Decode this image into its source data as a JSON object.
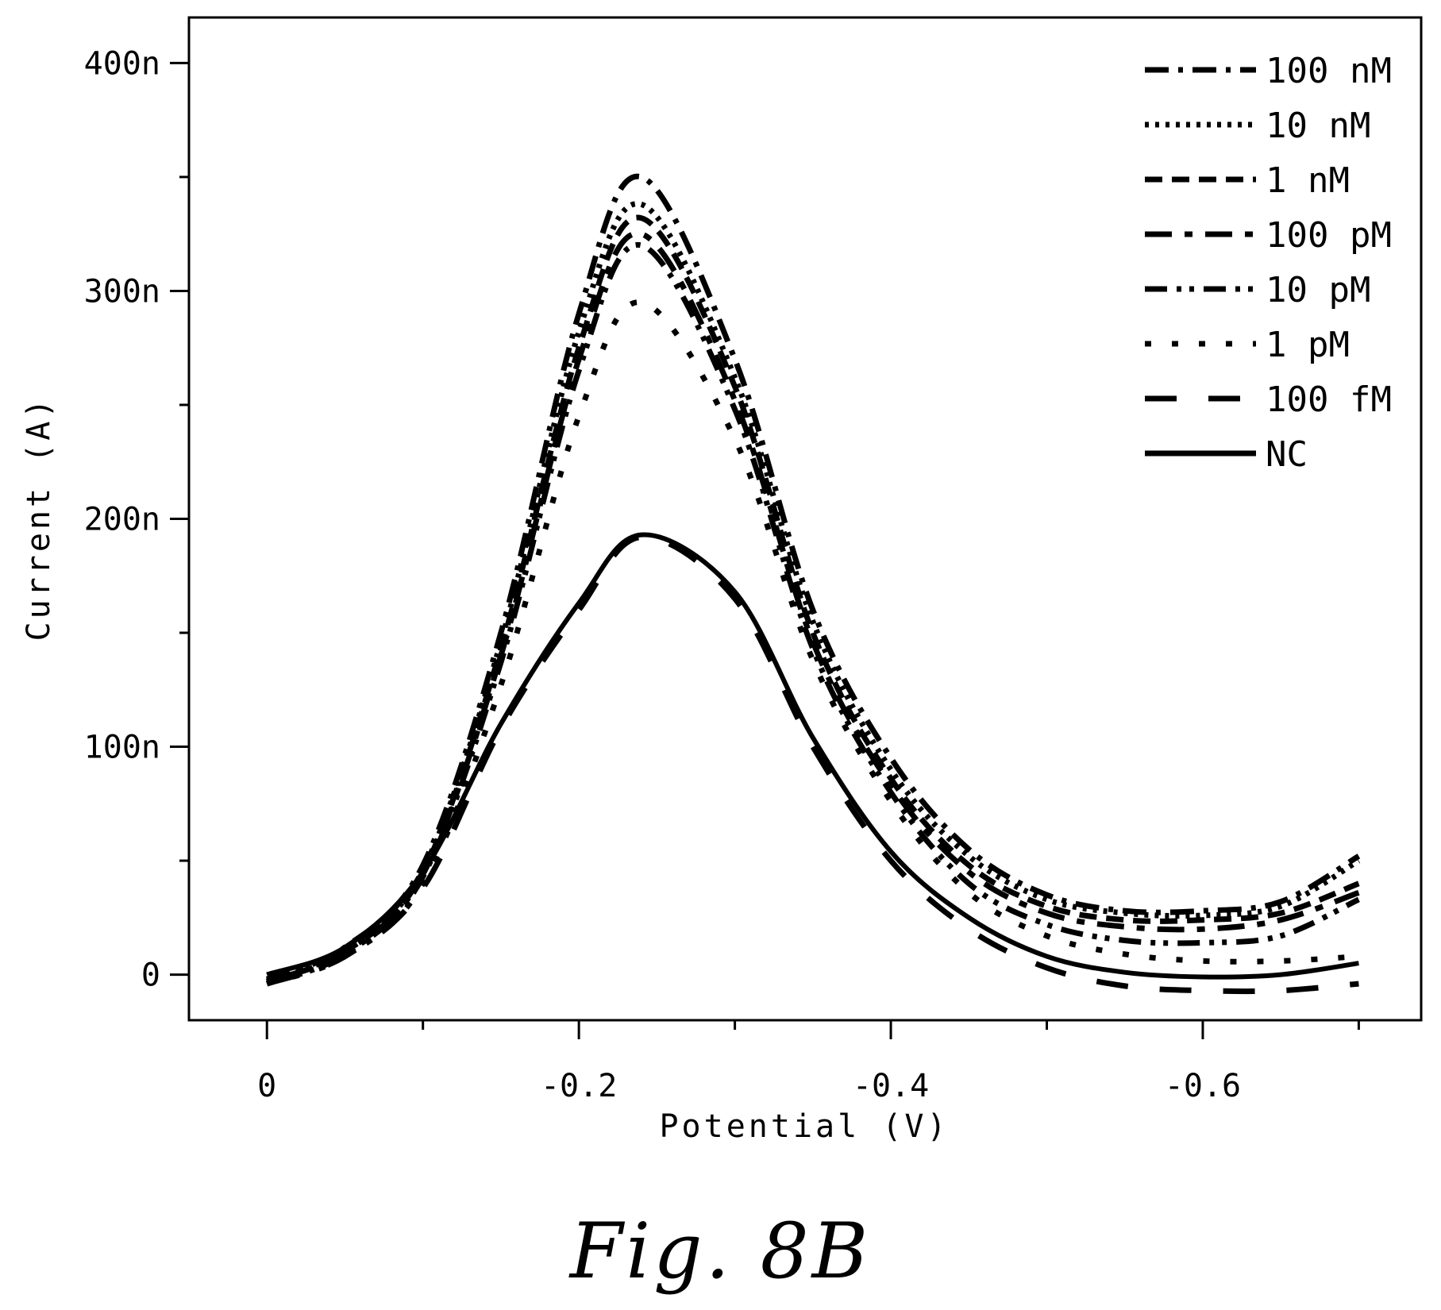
{
  "chart_data": {
    "type": "line",
    "title": "",
    "xlabel": "Potential (V)",
    "ylabel": "Current (A)",
    "xlim": [
      0.05,
      -0.74
    ],
    "ylim": [
      -20,
      420
    ],
    "x_ticks": [
      0,
      -0.2,
      -0.4,
      -0.6
    ],
    "x_tick_labels": [
      "0",
      "-0.2",
      "-0.4",
      "-0.6"
    ],
    "y_ticks": [
      0,
      100,
      200,
      300,
      400
    ],
    "y_tick_labels": [
      "0",
      "100n",
      "200n",
      "300n",
      "400n"
    ],
    "y_unit": "nA",
    "grid": false,
    "legend_position": "top-right",
    "x": [
      0,
      -0.05,
      -0.1,
      -0.15,
      -0.2,
      -0.24,
      -0.3,
      -0.35,
      -0.4,
      -0.45,
      -0.5,
      -0.55,
      -0.6,
      -0.65,
      -0.7
    ],
    "series": [
      {
        "name": "100 nM",
        "dash": "dash-dot",
        "values": [
          -2,
          12,
          48,
          150,
          290,
          350,
          270,
          160,
          95,
          55,
          35,
          28,
          28,
          32,
          52
        ]
      },
      {
        "name": "10 nM",
        "dash": "dotted",
        "values": [
          -3,
          11,
          46,
          146,
          282,
          338,
          262,
          155,
          90,
          52,
          33,
          27,
          26,
          30,
          50
        ]
      },
      {
        "name": "1 nM",
        "dash": "dashed",
        "values": [
          -3,
          10,
          45,
          143,
          275,
          332,
          258,
          150,
          86,
          48,
          30,
          24,
          24,
          27,
          40
        ]
      },
      {
        "name": "100 pM",
        "dash": "long-short",
        "values": [
          -3,
          10,
          44,
          140,
          270,
          325,
          252,
          146,
          83,
          45,
          27,
          21,
          20,
          24,
          36
        ]
      },
      {
        "name": "10 pM",
        "dash": "dash-dot-dot",
        "values": [
          -4,
          9,
          43,
          137,
          265,
          320,
          248,
          143,
          80,
          40,
          22,
          15,
          14,
          17,
          33
        ]
      },
      {
        "name": "1 pM",
        "dash": "sparse-dotted",
        "values": [
          -4,
          8,
          40,
          127,
          245,
          295,
          235,
          138,
          76,
          36,
          17,
          9,
          6,
          6,
          8
        ]
      },
      {
        "name": "100 fM",
        "dash": "long-dash",
        "values": [
          -4,
          8,
          38,
          108,
          160,
          192,
          165,
          100,
          50,
          20,
          3,
          -5,
          -7,
          -7,
          -4
        ]
      },
      {
        "name": "NC",
        "dash": "solid",
        "values": [
          0,
          12,
          45,
          110,
          163,
          193,
          168,
          104,
          54,
          25,
          8,
          1,
          -1,
          0,
          5
        ]
      }
    ]
  },
  "figure": {
    "caption": "Fig. 8B"
  }
}
